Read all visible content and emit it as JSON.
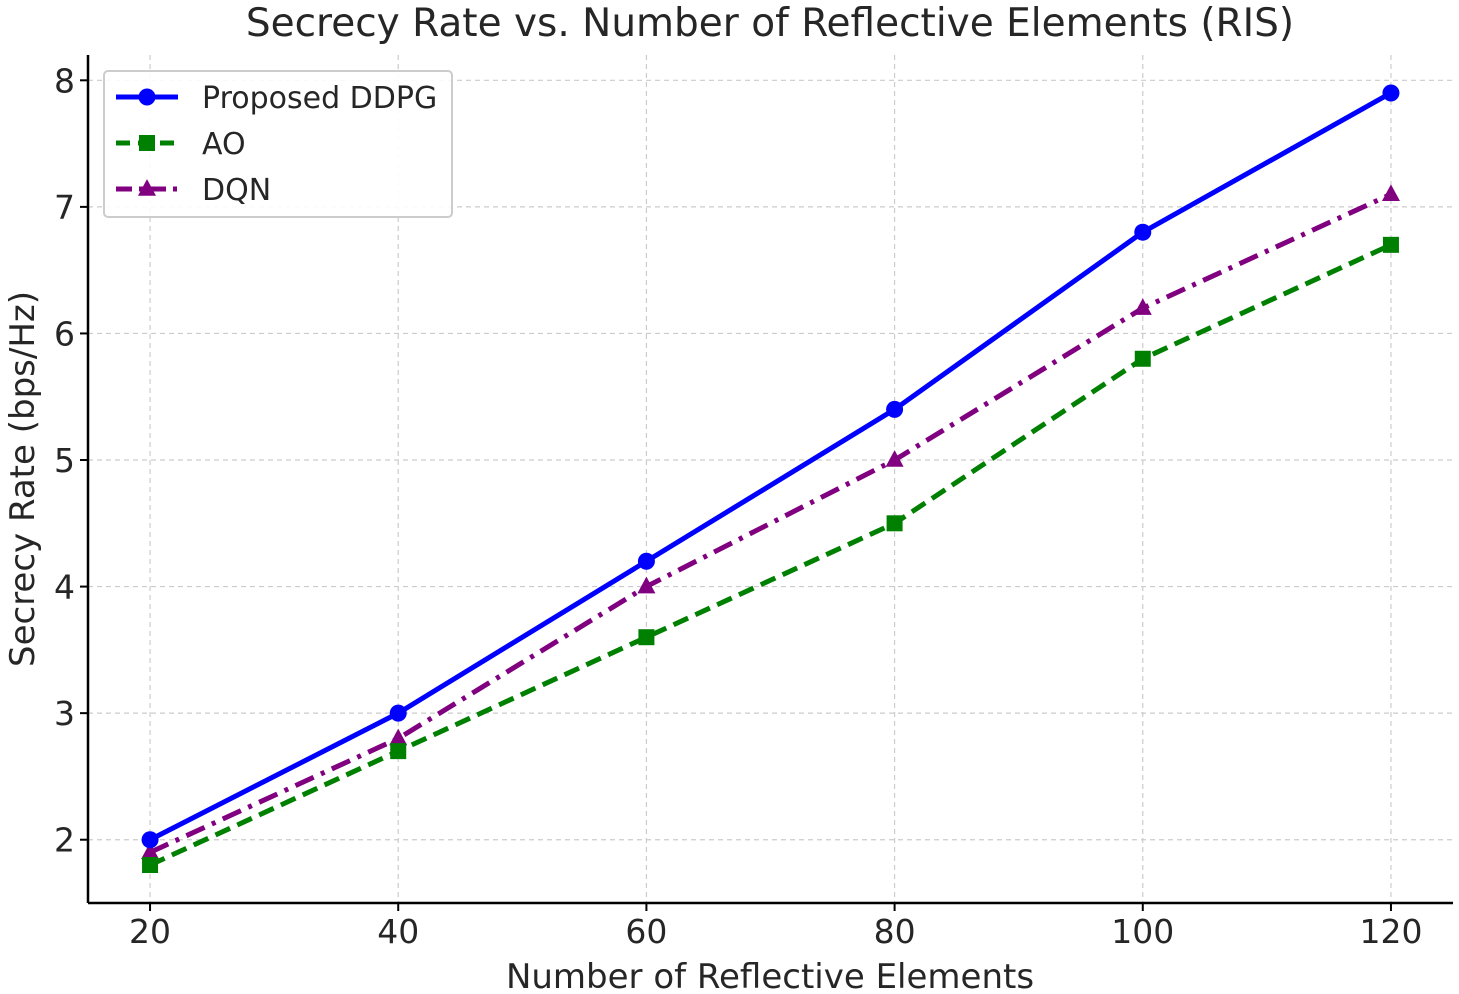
{
  "chart_data": {
    "type": "line",
    "title": "Secrecy Rate vs. Number of Reflective Elements (RIS)",
    "xlabel": "Number of Reflective Elements",
    "ylabel": "Secrecy Rate (bps/Hz)",
    "x": [
      20,
      40,
      60,
      80,
      100,
      120
    ],
    "xticks": [
      20,
      40,
      60,
      80,
      100,
      120
    ],
    "yticks": [
      2,
      3,
      4,
      5,
      6,
      7,
      8
    ],
    "xlim": [
      15,
      125
    ],
    "ylim": [
      1.5,
      8.2
    ],
    "grid": true,
    "legend_position": "top-left",
    "series": [
      {
        "name": "Proposed DDPG",
        "values": [
          2.0,
          3.0,
          4.2,
          5.4,
          6.8,
          7.9
        ],
        "color": "#0000ff",
        "linestyle": "solid",
        "marker": "circle"
      },
      {
        "name": "AO",
        "values": [
          1.8,
          2.7,
          3.6,
          4.5,
          5.8,
          6.7
        ],
        "color": "#008000",
        "linestyle": "dashed",
        "marker": "square"
      },
      {
        "name": "DQN",
        "values": [
          1.9,
          2.8,
          4.0,
          5.0,
          6.2,
          7.1
        ],
        "color": "#800080",
        "linestyle": "dashdot",
        "marker": "triangle"
      }
    ]
  }
}
